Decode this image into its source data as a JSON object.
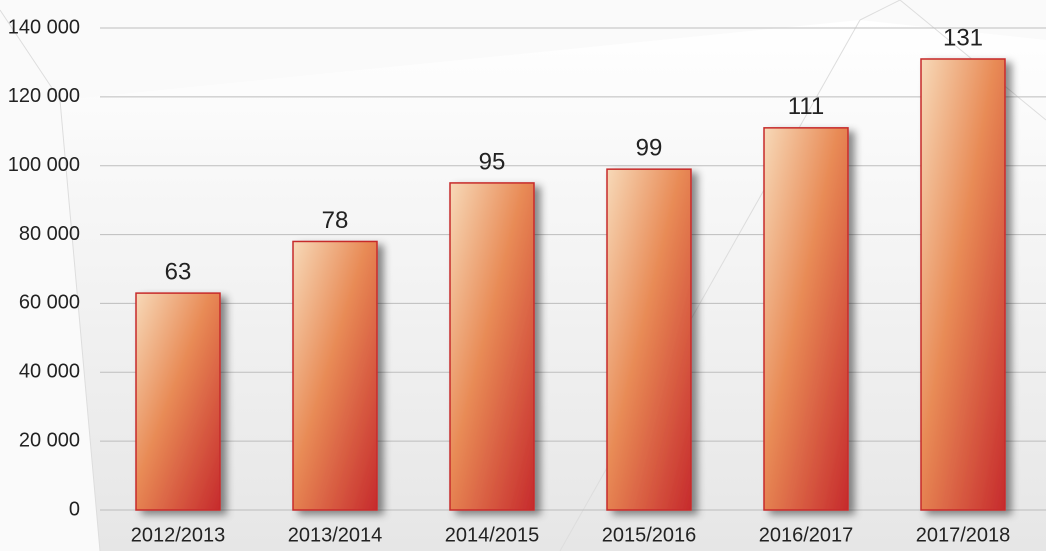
{
  "chart_data": {
    "type": "bar",
    "categories": [
      "2012/2013",
      "2013/2014",
      "2014/2015",
      "2015/2016",
      "2016/2017",
      "2017/2018"
    ],
    "values": [
      63000,
      78000,
      95000,
      99000,
      111000,
      131000
    ],
    "value_labels": [
      "63",
      "78",
      "95",
      "99",
      "111",
      "131"
    ],
    "color": "#c62a2c",
    "ylim": [
      0,
      140000
    ],
    "yticks": [
      0,
      {
        "value": 20000,
        "label": "20 000"
      },
      {
        "value": 40000,
        "label": "40 000"
      },
      {
        "value": 60000,
        "label": "60 000"
      },
      {
        "value": 80000,
        "label": "80 000"
      },
      {
        "value": 100000,
        "label": "100 000"
      },
      {
        "value": 120000,
        "label": "120 000"
      },
      {
        "value": 140000,
        "label": "140 000"
      }
    ],
    "grid": true
  }
}
